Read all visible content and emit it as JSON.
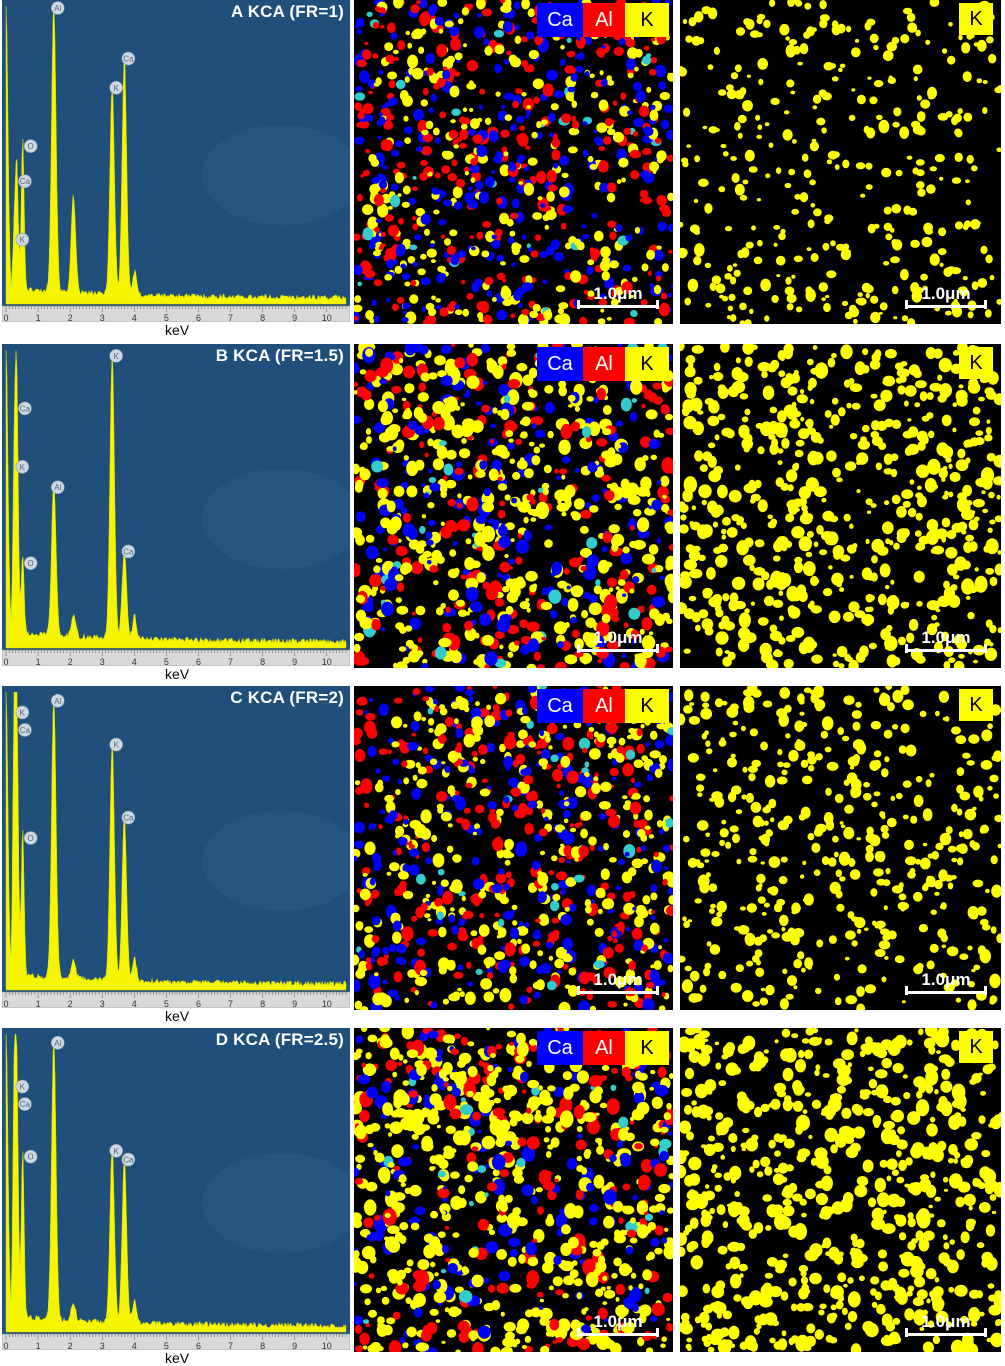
{
  "panels": [
    {
      "id": "A",
      "title": "A  KCA (FR=1)",
      "xlabel": "keV",
      "ticks": [
        "0",
        "1",
        "2",
        "3",
        "4",
        "5",
        "6",
        "7",
        "8",
        "9",
        "10"
      ],
      "peaks": [
        {
          "element": "O",
          "kev": 0.52,
          "height": 0.52
        },
        {
          "element": "Ca",
          "kev": 0.34,
          "height": 0.4
        },
        {
          "element": "K",
          "kev": 0.26,
          "height": 0.2
        },
        {
          "element": "Al",
          "kev": 1.49,
          "height": 1.0
        },
        {
          "element": "",
          "kev": 2.1,
          "height": 0.33
        },
        {
          "element": "K",
          "kev": 3.31,
          "height": 0.72
        },
        {
          "element": "Ca",
          "kev": 3.69,
          "height": 0.82
        }
      ],
      "legend": [
        "Ca",
        "Al",
        "K"
      ],
      "k_label": "K",
      "scale_bar": "1.0μm",
      "k_density": 0.18
    },
    {
      "id": "B",
      "title": "B  KCA (FR=1.5)",
      "xlabel": "keV",
      "ticks": [
        "0",
        "1",
        "2",
        "3",
        "4",
        "5",
        "6",
        "7",
        "8",
        "9",
        "10"
      ],
      "peaks": [
        {
          "element": "Ca",
          "kev": 0.34,
          "height": 0.8
        },
        {
          "element": "K",
          "kev": 0.26,
          "height": 0.6
        },
        {
          "element": "O",
          "kev": 0.52,
          "height": 0.27
        },
        {
          "element": "Al",
          "kev": 1.49,
          "height": 0.53
        },
        {
          "element": "",
          "kev": 2.1,
          "height": 0.07
        },
        {
          "element": "K",
          "kev": 3.31,
          "height": 0.98
        },
        {
          "element": "Ca",
          "kev": 3.69,
          "height": 0.31
        }
      ],
      "legend": [
        "Ca",
        "Al",
        "K"
      ],
      "k_label": "K",
      "scale_bar": "1.0μm",
      "k_density": 0.45
    },
    {
      "id": "C",
      "title": "C  KCA (FR=2)",
      "xlabel": "keV",
      "ticks": [
        "0",
        "1",
        "2",
        "3",
        "4",
        "5",
        "6",
        "7",
        "8",
        "9",
        "10"
      ],
      "peaks": [
        {
          "element": "K",
          "kev": 0.26,
          "height": 0.93
        },
        {
          "element": "Ca",
          "kev": 0.34,
          "height": 0.87
        },
        {
          "element": "O",
          "kev": 0.52,
          "height": 0.5
        },
        {
          "element": "Al",
          "kev": 1.49,
          "height": 0.97
        },
        {
          "element": "",
          "kev": 2.1,
          "height": 0.06
        },
        {
          "element": "K",
          "kev": 3.31,
          "height": 0.82
        },
        {
          "element": "Ca",
          "kev": 3.69,
          "height": 0.57
        }
      ],
      "legend": [
        "Ca",
        "Al",
        "K"
      ],
      "k_label": "K",
      "scale_bar": "1.0μm",
      "k_density": 0.28
    },
    {
      "id": "D",
      "title": "D  KCA (FR=2.5)",
      "xlabel": "keV",
      "ticks": [
        "0",
        "1",
        "2",
        "3",
        "4",
        "5",
        "6",
        "7",
        "8",
        "9",
        "10"
      ],
      "peaks": [
        {
          "element": "K",
          "kev": 0.26,
          "height": 0.82
        },
        {
          "element": "Ca",
          "kev": 0.34,
          "height": 0.76
        },
        {
          "element": "O",
          "kev": 0.52,
          "height": 0.58
        },
        {
          "element": "Al",
          "kev": 1.49,
          "height": 0.97
        },
        {
          "element": "",
          "kev": 2.1,
          "height": 0.06
        },
        {
          "element": "K",
          "kev": 3.31,
          "height": 0.6
        },
        {
          "element": "Ca",
          "kev": 3.69,
          "height": 0.57
        }
      ],
      "legend": [
        "Ca",
        "Al",
        "K"
      ],
      "k_label": "K",
      "scale_bar": "1.0μm",
      "k_density": 0.5
    }
  ],
  "colors": {
    "spectrum_bg": "#1f4f7a",
    "spectrum_fill": "#f5f500",
    "ca": "#0000ff",
    "al": "#ff0000",
    "k": "#ffff00",
    "overlap": "#33cccc"
  }
}
